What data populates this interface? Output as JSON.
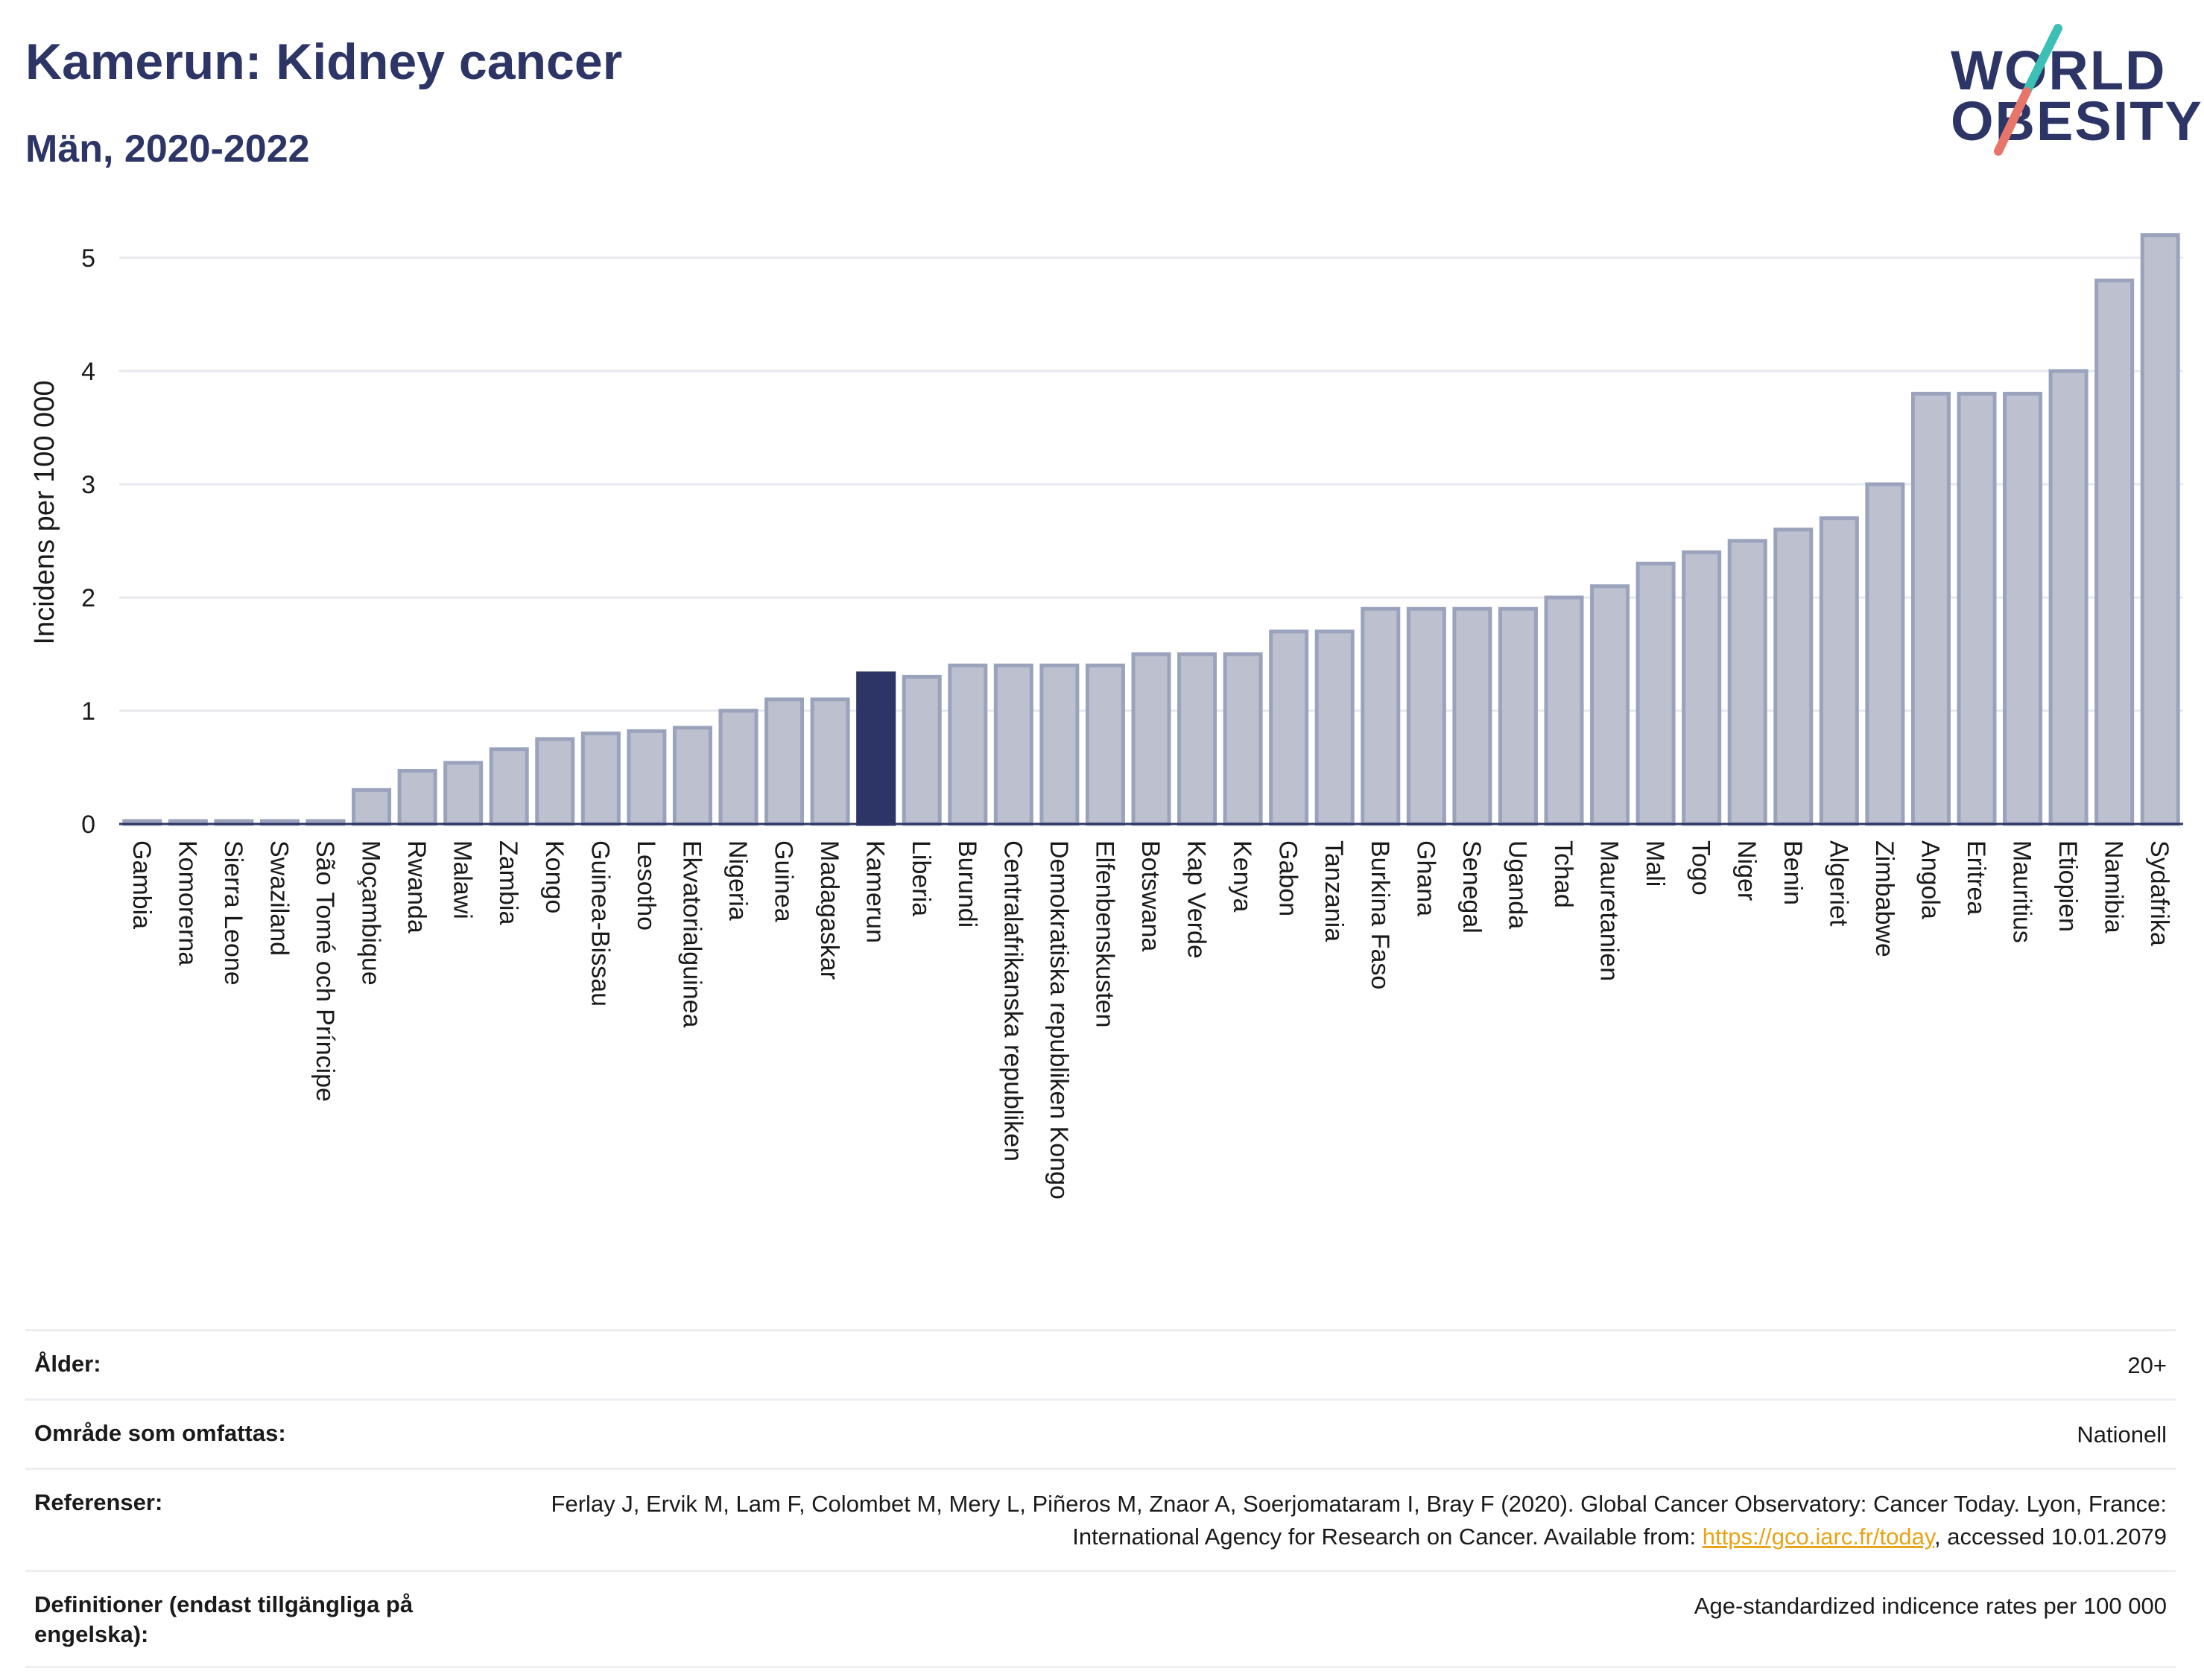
{
  "header": {
    "title": "Kamerun: Kidney cancer",
    "subtitle": "Män, 2020-2022"
  },
  "logo": {
    "line1": "WORLD",
    "line2": "OBESITY",
    "slash_colors": [
      "#3cbfb4",
      "#e8756a"
    ]
  },
  "colors": {
    "bar_fill": "#bcc0cf",
    "bar_stroke": "#9ba2bc",
    "highlight": "#2c3565",
    "grid": "#e6e8ee",
    "axis": "#2c3565",
    "text": "#1a1a1a"
  },
  "chart_data": {
    "type": "bar",
    "ylabel": "Incidens per 100 000",
    "ylim": [
      0,
      5.5
    ],
    "yticks": [
      0,
      1,
      2,
      3,
      4,
      5
    ],
    "grid": true,
    "highlight_category": "Kamerun",
    "categories": [
      "Gambia",
      "Komorerna",
      "Sierra Leone",
      "Swaziland",
      "São Tomé och Príncipe",
      "Moçambique",
      "Rwanda",
      "Malawi",
      "Zambia",
      "Kongo",
      "Guinea-Bissau",
      "Lesotho",
      "Ekvatorialguinea",
      "Nigeria",
      "Guinea",
      "Madagaskar",
      "Kamerun",
      "Liberia",
      "Burundi",
      "Centralafrikanska republiken",
      "Demokratiska republiken Kongo",
      "Elfenbenskusten",
      "Botswana",
      "Kap Verde",
      "Kenya",
      "Gabon",
      "Tanzania",
      "Burkina Faso",
      "Ghana",
      "Senegal",
      "Uganda",
      "Tchad",
      "Mauretanien",
      "Mali",
      "Togo",
      "Niger",
      "Benin",
      "Algeriet",
      "Zimbabwe",
      "Angola",
      "Eritrea",
      "Mauritius",
      "Etiopien",
      "Namibia",
      "Sydafrika"
    ],
    "values": [
      0.02,
      0.02,
      0.02,
      0.02,
      0.02,
      0.3,
      0.47,
      0.54,
      0.66,
      0.75,
      0.8,
      0.82,
      0.85,
      1.0,
      1.1,
      1.1,
      1.33,
      1.3,
      1.4,
      1.4,
      1.4,
      1.4,
      1.5,
      1.5,
      1.5,
      1.7,
      1.7,
      1.9,
      1.9,
      1.9,
      1.9,
      2.0,
      2.1,
      2.3,
      2.4,
      2.5,
      2.6,
      2.7,
      3.0,
      3.8,
      3.8,
      3.8,
      4.0,
      4.8,
      5.2
    ]
  },
  "footer": {
    "rows": [
      {
        "label": "Ålder:",
        "value": "20+"
      },
      {
        "label": "Område som omfattas:",
        "value": "Nationell"
      },
      {
        "label": "Referenser:",
        "value": "Ferlay J, Ervik M, Lam F, Colombet M, Mery L, Piñeros M, Znaor A, Soerjomataram I, Bray F (2020). Global Cancer Observatory: Cancer Today. Lyon, France: International Agency for Research on Cancer. Available from: ",
        "link": "https://gco.iarc.fr/today",
        "value_after": ", accessed 10.01.2079"
      },
      {
        "label": "Definitioner (endast tillgängliga på engelska):",
        "value": "Age-standardized indicence rates per 100 000"
      }
    ]
  }
}
